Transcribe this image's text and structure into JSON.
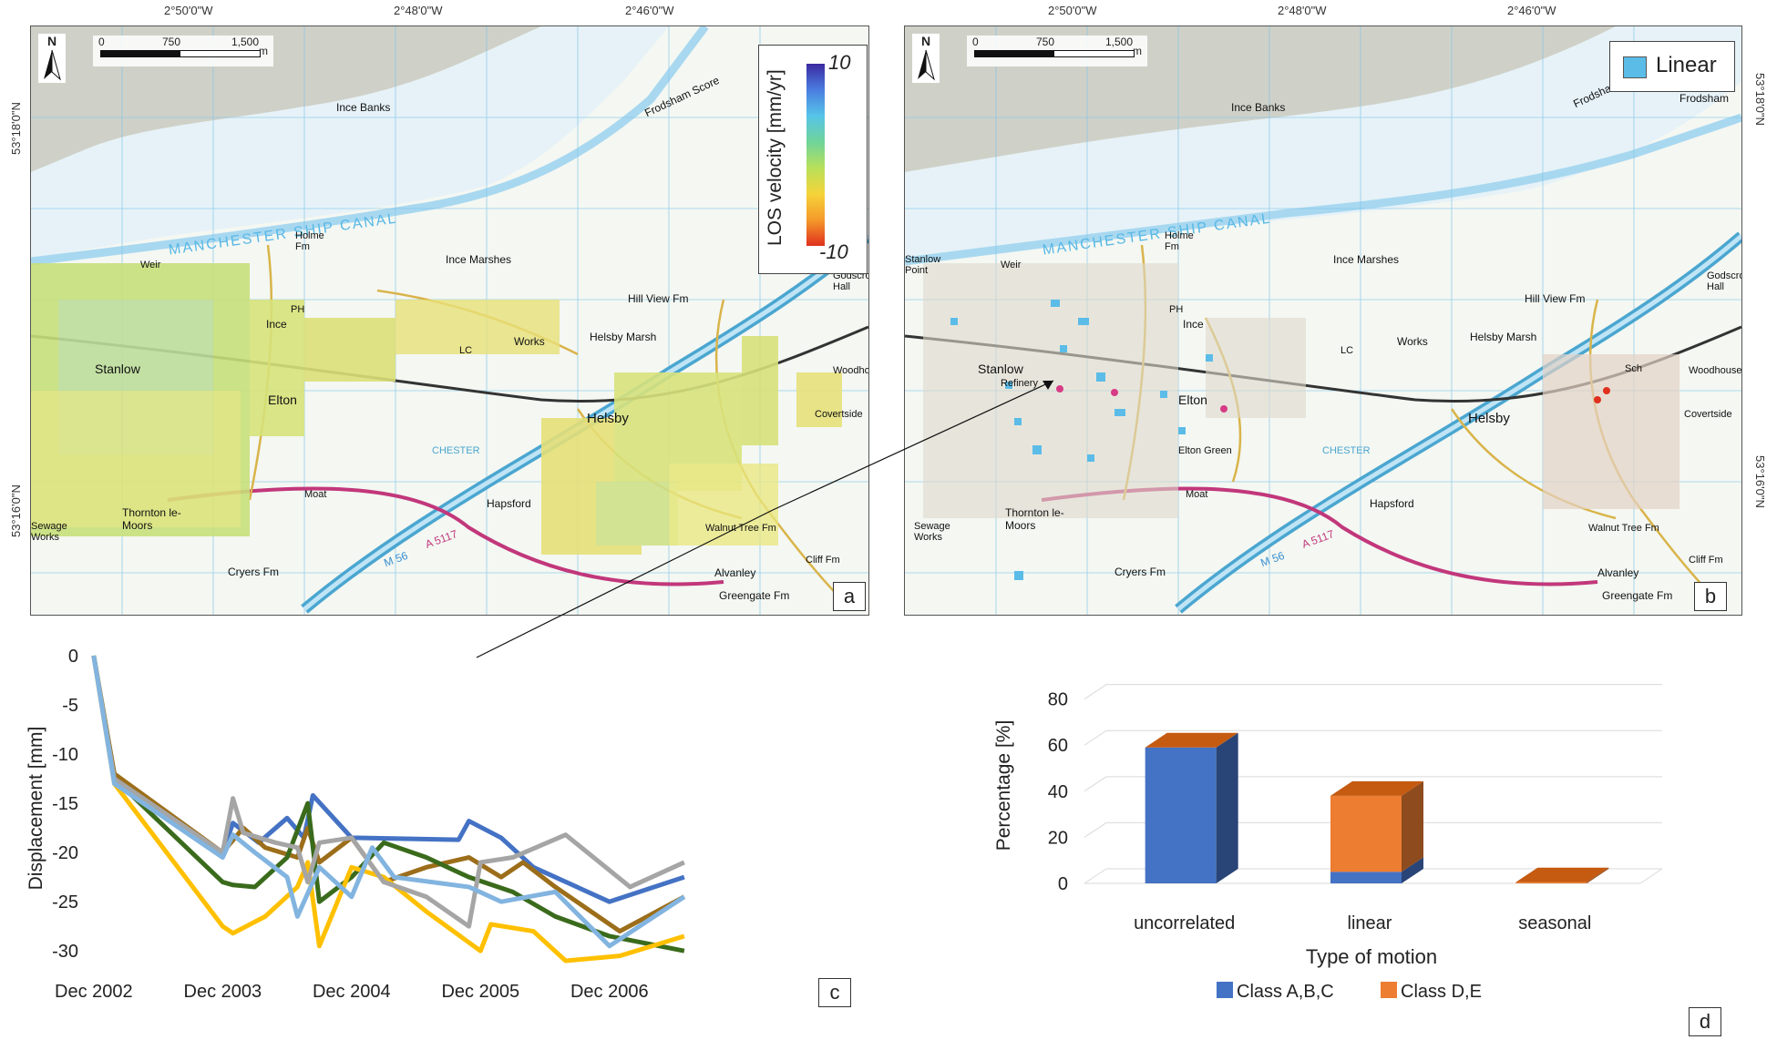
{
  "coords": {
    "lon_labels": [
      "2°50'0\"W",
      "2°48'0\"W",
      "2°46'0\"W"
    ],
    "lat_a": [
      "53°18'0\"N",
      "53°16'0\"N"
    ],
    "lat_b": [
      "53°18'0\"N",
      "53°16'0\"N"
    ]
  },
  "scale": {
    "zero": "0",
    "mid": "750",
    "max": "1,500",
    "unit": "m"
  },
  "north": "N",
  "panel_a": {
    "letter": "a",
    "legend_title": "LOS velocity [mm/yr]",
    "legend_max": "10",
    "legend_min": "-10",
    "places": [
      "Ince Banks",
      "MANCHESTER SHIP CANAL",
      "Ince Marshes",
      "Stanlow",
      "Elton",
      "Ince",
      "Helsby",
      "Helsby Marsh",
      "Hapsford",
      "Thornton le-Moors",
      "Alvanley",
      "Works",
      "Hill View Fm",
      "Frodsham Score",
      "Sewage Works",
      "Cryers Fm",
      "Greengate Fm",
      "Godscroft Hall",
      "Woodhouse",
      "Covertside",
      "Cliff Fm",
      "Walnut Tree Fm",
      "M 56",
      "A 5117",
      "CHESTER",
      "Moat",
      "PH",
      "LC",
      "Holme Fm",
      "Weir"
    ]
  },
  "panel_b": {
    "letter": "b",
    "legend_label": "Linear",
    "places": [
      "Ince Banks",
      "MANCHESTER SHIP CANAL",
      "Ince Marshes",
      "Stanlow",
      "Elton",
      "Elton Green",
      "Ince",
      "Helsby",
      "Helsby Marsh",
      "Hapsford",
      "Thornton le-Moors",
      "Alvanley",
      "Works",
      "Hill View Fm",
      "Frodsham Score",
      "Frodsham",
      "Sewage Works",
      "Cryers Fm",
      "Greengate Fm",
      "Godscroft Hall",
      "Woodhouses",
      "Covertside",
      "Cliff Fm",
      "Walnut Tree Fm",
      "Stanlow Point",
      "Refinery",
      "M 56",
      "A 5117",
      "CHESTER",
      "Moat",
      "PH",
      "LC",
      "Holme Fm",
      "Weir",
      "Sch"
    ]
  },
  "chart_c": {
    "letter": "c",
    "chart_data": {
      "type": "line",
      "ylabel": "Displacement [mm]",
      "xlabel": "",
      "xtick_labels": [
        "Dec 2002",
        "Dec 2003",
        "Dec 2004",
        "Dec 2005",
        "Dec 2006"
      ],
      "ytick_labels": [
        "0",
        "-5",
        "-10",
        "-15",
        "-20",
        "-25",
        "-30"
      ],
      "xlim": [
        2002.9,
        2007.6
      ],
      "ylim": [
        -31,
        0
      ],
      "series": [
        {
          "color": "#4472c4",
          "x": [
            2002.92,
            2003.08,
            2003.92,
            2004.0,
            2004.2,
            2004.42,
            2004.55,
            2004.62,
            2004.92,
            2005.75,
            2005.83,
            2006.08,
            2006.33,
            2006.92,
            2007.5
          ],
          "y": [
            0,
            -12.5,
            -20,
            -17,
            -19,
            -16.5,
            -18.5,
            -14.2,
            -18.5,
            -18.7,
            -16.8,
            -18.5,
            -21.5,
            -25,
            -22.5
          ]
        },
        {
          "color": "#9c6e1a",
          "x": [
            2002.92,
            2003.08,
            2003.92,
            2004.08,
            2004.25,
            2004.5,
            2004.58,
            2004.67,
            2004.92,
            2005.17,
            2005.5,
            2005.83,
            2006.08,
            2006.25,
            2006.5,
            2007.0,
            2007.5
          ],
          "y": [
            0,
            -12,
            -20,
            -17.5,
            -19.5,
            -20.5,
            -17.5,
            -21,
            -18.5,
            -23,
            -21.5,
            -20.5,
            -22.5,
            -21,
            -23.5,
            -28,
            -24.5
          ]
        },
        {
          "color": "#3a6b1c",
          "x": [
            2002.92,
            2003.08,
            2003.92,
            2004.0,
            2004.17,
            2004.42,
            2004.58,
            2004.67,
            2004.92,
            2005.17,
            2005.5,
            2005.83,
            2006.17,
            2006.5,
            2006.92,
            2007.5
          ],
          "y": [
            0,
            -12.5,
            -23,
            -23.3,
            -23.5,
            -20.5,
            -15,
            -25,
            -22.5,
            -19,
            -20.5,
            -22.5,
            -24,
            -26.5,
            -28.5,
            -30
          ]
        },
        {
          "color": "#ffc000",
          "x": [
            2002.92,
            2003.08,
            2003.92,
            2004.0,
            2004.25,
            2004.5,
            2004.58,
            2004.67,
            2004.92,
            2005.17,
            2005.5,
            2005.92,
            2006.0,
            2006.33,
            2006.58,
            2007.0,
            2007.5
          ],
          "y": [
            0,
            -13,
            -27.5,
            -28.2,
            -26.5,
            -23.5,
            -21,
            -29.5,
            -21.5,
            -22.5,
            -26,
            -30,
            -27.3,
            -28,
            -31,
            -30.5,
            -28.5
          ]
        },
        {
          "color": "#a5a5a5",
          "x": [
            2002.92,
            2003.08,
            2003.92,
            2004.0,
            2004.08,
            2004.33,
            2004.5,
            2004.58,
            2004.67,
            2004.92,
            2005.17,
            2005.5,
            2005.83,
            2005.92,
            2006.17,
            2006.58,
            2007.08,
            2007.5
          ],
          "y": [
            0,
            -12.5,
            -20,
            -14.5,
            -18,
            -19,
            -19.5,
            -23,
            -19,
            -18.5,
            -23,
            -24.5,
            -27.5,
            -21,
            -20.5,
            -18.2,
            -23.5,
            -21
          ]
        },
        {
          "color": "#82b4e0",
          "x": [
            2002.92,
            2003.08,
            2003.92,
            2004.0,
            2004.17,
            2004.42,
            2004.5,
            2004.67,
            2004.92,
            2005.08,
            2005.25,
            2005.83,
            2006.08,
            2006.5,
            2006.92,
            2007.5
          ],
          "y": [
            0,
            -13,
            -20.5,
            -18.2,
            -20,
            -22.5,
            -26.5,
            -21.5,
            -24.5,
            -19.5,
            -22.5,
            -23.5,
            -25,
            -24,
            -29.5,
            -24.5
          ]
        }
      ]
    }
  },
  "chart_d": {
    "letter": "d",
    "chart_data": {
      "type": "bar",
      "stacked": true,
      "three_d": true,
      "ylabel": "Percentage [%]",
      "xlabel": "Type of motion",
      "categories": [
        "uncorrelated",
        "linear",
        "seasonal"
      ],
      "ytick_labels": [
        "0",
        "20",
        "40",
        "60",
        "80"
      ],
      "ylim": [
        0,
        85
      ],
      "legend_position": "bottom",
      "series": [
        {
          "name": "Class A,B,C",
          "color": "#4472c4",
          "values": [
            59,
            5,
            0
          ]
        },
        {
          "name": "Class D,E",
          "color": "#ed7d31",
          "values": [
            0,
            33,
            0.5
          ]
        }
      ]
    }
  }
}
